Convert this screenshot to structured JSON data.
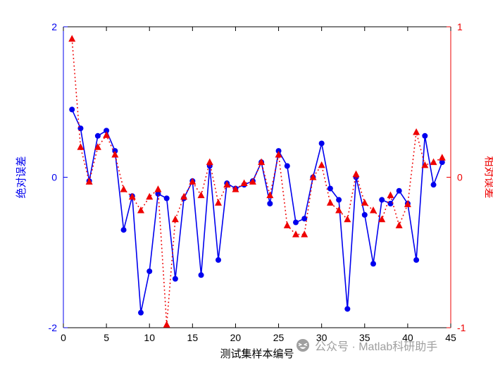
{
  "chart_data": {
    "type": "line",
    "x": [
      1,
      2,
      3,
      4,
      5,
      6,
      7,
      8,
      9,
      10,
      11,
      12,
      13,
      14,
      15,
      16,
      17,
      18,
      19,
      20,
      21,
      22,
      23,
      24,
      25,
      26,
      27,
      28,
      29,
      30,
      31,
      32,
      33,
      34,
      35,
      36,
      37,
      38,
      39,
      40,
      41,
      42,
      43,
      44
    ],
    "series": [
      {
        "name": "绝对误差",
        "axis": "left",
        "color": "#0000ee",
        "marker": "circle",
        "line_style": "solid",
        "values": [
          0.9,
          0.65,
          -0.05,
          0.55,
          0.62,
          0.35,
          -0.7,
          -0.25,
          -1.8,
          -1.25,
          -0.22,
          -0.28,
          -1.35,
          -0.28,
          -0.05,
          -1.3,
          0.15,
          -1.1,
          -0.08,
          -0.15,
          -0.1,
          -0.05,
          0.2,
          -0.35,
          0.35,
          0.15,
          -0.6,
          -0.55,
          0.0,
          0.45,
          -0.15,
          -0.3,
          -1.75,
          0.0,
          -0.5,
          -1.15,
          -0.3,
          -0.35,
          -0.18,
          -0.35,
          -1.1,
          0.55,
          -0.1,
          0.2
        ]
      },
      {
        "name": "相对误差",
        "axis": "right",
        "color": "#ee0000",
        "marker": "triangle",
        "line_style": "dotted",
        "values": [
          0.92,
          0.2,
          -0.03,
          0.2,
          0.28,
          0.15,
          -0.08,
          -0.13,
          -0.22,
          -0.13,
          -0.08,
          -0.98,
          -0.28,
          -0.13,
          -0.03,
          -0.12,
          0.1,
          -0.17,
          -0.05,
          -0.08,
          -0.04,
          -0.03,
          0.1,
          -0.12,
          0.15,
          -0.32,
          -0.38,
          -0.38,
          0.0,
          0.08,
          -0.17,
          -0.22,
          -0.28,
          0.02,
          -0.17,
          -0.22,
          -0.28,
          -0.12,
          -0.32,
          -0.18,
          0.3,
          0.08,
          0.1,
          0.13
        ]
      }
    ],
    "title": "",
    "xlabel": "测试集样本编号",
    "ylabel_left": "绝对误差",
    "ylabel_right": "相对误差",
    "xlim": [
      0,
      45
    ],
    "ylim_left": [
      -2,
      2
    ],
    "ylim_right": [
      -1,
      1
    ],
    "xticks": [
      0,
      5,
      10,
      15,
      20,
      25,
      30,
      35,
      40,
      45
    ],
    "yticks_left": [
      -2,
      0,
      2
    ],
    "yticks_right": [
      -1,
      0,
      1
    ],
    "grid": false,
    "legend_position": "none"
  },
  "watermark": {
    "text": "公众号 · Matlab科研助手",
    "icon": "emoji-face-icon"
  },
  "colors": {
    "left_axis": "#0000ee",
    "right_axis": "#ee0000",
    "x_axis": "#000000",
    "watermark": "#9a9a9a",
    "background": "#ffffff"
  }
}
